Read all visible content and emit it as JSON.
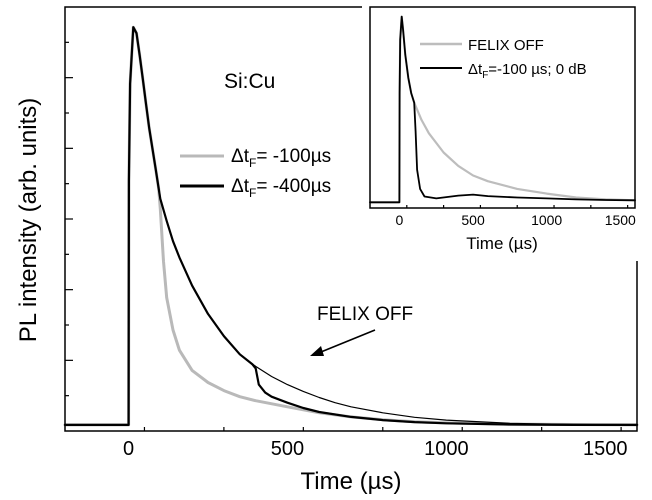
{
  "chart_data": [
    {
      "type": "line",
      "panel": "main",
      "xlabel": "Time (µs)",
      "ylabel": "PL intensity (arb. units)",
      "xlim": [
        -200,
        1600
      ],
      "ylim": [
        0,
        1.05
      ],
      "x_ticks": [
        "0",
        "500",
        "1000",
        "1500"
      ],
      "y_tick_labels_shown": false,
      "annotations": [
        {
          "text": "Si:Cu"
        },
        {
          "text": "FELIX OFF",
          "arrow_to": {
            "x": 570,
            "y": 0.115
          }
        }
      ],
      "legend": {
        "placement": "middle-right",
        "entries": [
          {
            "prefix": "Δt",
            "sub": "F",
            "suffix": "= -100µs",
            "series": "gray"
          },
          {
            "prefix": "Δt",
            "sub": "F",
            "suffix": "= -400µs",
            "series": "black"
          }
        ]
      },
      "series": [
        {
          "color": "#b9b9b9",
          "x": [
            -200,
            -50,
            0,
            1,
            5,
            15,
            25,
            35,
            45,
            55,
            65,
            75,
            85,
            95,
            100,
            110,
            120,
            140,
            160,
            200,
            250,
            300,
            350,
            400,
            500,
            600,
            700,
            800,
            900,
            1000,
            1200,
            1400,
            1600
          ],
          "y": [
            0.015,
            0.015,
            0.015,
            0.62,
            0.86,
            1.0,
            0.985,
            0.93,
            0.87,
            0.81,
            0.75,
            0.7,
            0.65,
            0.6,
            0.55,
            0.42,
            0.33,
            0.25,
            0.2,
            0.15,
            0.12,
            0.1,
            0.085,
            0.075,
            0.06,
            0.045,
            0.035,
            0.028,
            0.023,
            0.02,
            0.017,
            0.016,
            0.015
          ]
        },
        {
          "color": "#000000",
          "x": [
            -200,
            -50,
            0,
            1,
            5,
            15,
            25,
            35,
            45,
            55,
            65,
            75,
            85,
            95,
            100,
            120,
            140,
            160,
            200,
            250,
            300,
            350,
            390,
            400,
            410,
            430,
            450,
            500,
            550,
            600,
            700,
            800,
            900,
            1000,
            1200,
            1400,
            1600
          ],
          "y": [
            0.015,
            0.015,
            0.015,
            0.62,
            0.86,
            1.0,
            0.985,
            0.93,
            0.87,
            0.81,
            0.75,
            0.7,
            0.65,
            0.6,
            0.575,
            0.52,
            0.47,
            0.43,
            0.36,
            0.29,
            0.235,
            0.19,
            0.165,
            0.155,
            0.115,
            0.095,
            0.085,
            0.07,
            0.057,
            0.047,
            0.035,
            0.027,
            0.022,
            0.019,
            0.016,
            0.015,
            0.015
          ]
        },
        {
          "color": "#000000",
          "x": [
            -200,
            -50,
            0,
            1,
            5,
            15,
            25,
            35,
            45,
            55,
            65,
            75,
            85,
            95,
            100,
            120,
            140,
            160,
            200,
            250,
            300,
            350,
            400,
            450,
            500,
            550,
            600,
            650,
            700,
            800,
            900,
            1000,
            1200,
            1400,
            1600
          ],
          "y": [
            0.015,
            0.015,
            0.015,
            0.62,
            0.86,
            1.0,
            0.985,
            0.93,
            0.87,
            0.81,
            0.75,
            0.7,
            0.65,
            0.6,
            0.575,
            0.52,
            0.47,
            0.43,
            0.36,
            0.29,
            0.235,
            0.19,
            0.16,
            0.135,
            0.115,
            0.098,
            0.083,
            0.07,
            0.06,
            0.045,
            0.034,
            0.027,
            0.019,
            0.016,
            0.015
          ]
        }
      ]
    },
    {
      "type": "line",
      "panel": "inset",
      "xlabel": "Time (µs)",
      "xlim": [
        -200,
        1600
      ],
      "ylim": [
        0,
        1.05
      ],
      "x_ticks": [
        "0",
        "500",
        "1000",
        "1500"
      ],
      "legend": {
        "placement": "top-right",
        "entries": [
          {
            "text": "FELIX OFF",
            "series": "gray"
          },
          {
            "prefix": "Δt",
            "sub": "F",
            "suffix": "=-100 µs; 0 dB",
            "series": "black"
          }
        ]
      },
      "series": [
        {
          "color": "#bdbdbd",
          "x": [
            -200,
            0,
            1,
            5,
            15,
            25,
            40,
            60,
            80,
            100,
            150,
            200,
            300,
            400,
            500,
            600,
            800,
            1000,
            1200,
            1400,
            1600
          ],
          "y": [
            0.03,
            0.03,
            0.6,
            0.88,
            1.0,
            0.93,
            0.8,
            0.68,
            0.6,
            0.55,
            0.46,
            0.39,
            0.29,
            0.22,
            0.17,
            0.14,
            0.1,
            0.075,
            0.055,
            0.045,
            0.04
          ]
        },
        {
          "color": "#000000",
          "x": [
            -200,
            0,
            1,
            5,
            15,
            25,
            40,
            60,
            80,
            100,
            110,
            120,
            140,
            170,
            250,
            400,
            500,
            600,
            800,
            1000,
            1200,
            1400,
            1600
          ],
          "y": [
            0.03,
            0.03,
            0.6,
            0.88,
            1.0,
            0.93,
            0.8,
            0.68,
            0.6,
            0.55,
            0.4,
            0.2,
            0.1,
            0.06,
            0.05,
            0.065,
            0.07,
            0.062,
            0.055,
            0.05,
            0.045,
            0.042,
            0.04
          ]
        }
      ]
    }
  ]
}
